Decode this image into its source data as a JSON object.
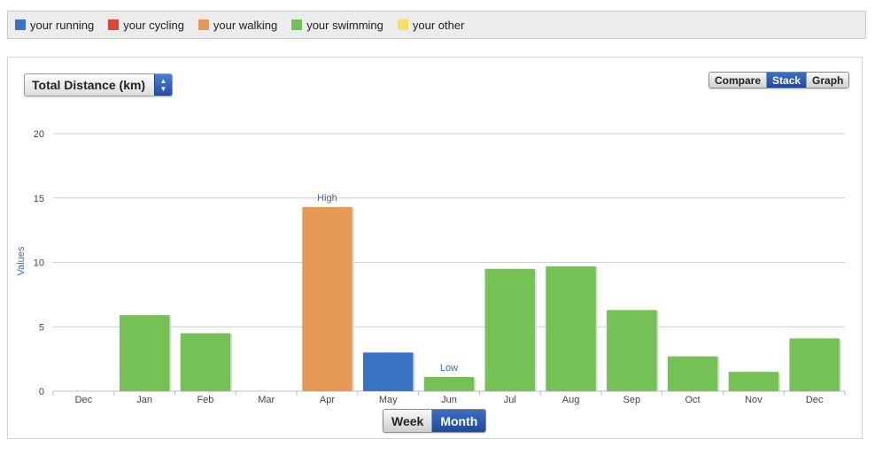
{
  "legend": [
    {
      "label": "your running",
      "color": "#3a72c4"
    },
    {
      "label": "your cycling",
      "color": "#d9463f"
    },
    {
      "label": "your walking",
      "color": "#e59a55"
    },
    {
      "label": "your swimming",
      "color": "#76c155"
    },
    {
      "label": "your other",
      "color": "#f7de5f"
    }
  ],
  "metric_select": {
    "label": "Total Distance (km)"
  },
  "view_toggle": {
    "compare": "Compare",
    "stack": "Stack",
    "graph": "Graph",
    "active": "stack"
  },
  "period_toggle": {
    "week": "Week",
    "month": "Month",
    "active": "month"
  },
  "chart_data": {
    "type": "bar",
    "stacked": true,
    "categories": [
      "Dec",
      "Jan",
      "Feb",
      "Mar",
      "Apr",
      "May",
      "Jun",
      "Jul",
      "Aug",
      "Sep",
      "Oct",
      "Nov",
      "Dec"
    ],
    "series": [
      {
        "name": "your running",
        "color": "#3a72c4",
        "values": [
          0,
          0,
          0,
          0,
          0,
          3.0,
          0,
          0,
          0,
          0,
          0,
          0,
          0
        ]
      },
      {
        "name": "your cycling",
        "color": "#d9463f",
        "values": [
          0,
          0,
          0,
          0,
          0,
          0,
          0,
          0,
          0,
          0,
          0,
          0,
          0
        ]
      },
      {
        "name": "your walking",
        "color": "#e59a55",
        "values": [
          0,
          0,
          0,
          0,
          14.3,
          0,
          0,
          0,
          0,
          0,
          0,
          0,
          0
        ]
      },
      {
        "name": "your swimming",
        "color": "#76c155",
        "values": [
          0,
          5.9,
          4.5,
          0,
          0,
          0,
          1.1,
          9.5,
          9.7,
          6.3,
          2.7,
          1.5,
          4.1
        ]
      },
      {
        "name": "your other",
        "color": "#f7de5f",
        "values": [
          0,
          0,
          0,
          0,
          0,
          0,
          0,
          0,
          0,
          0,
          0,
          0,
          0
        ]
      }
    ],
    "ylim": [
      0,
      20
    ],
    "yticks": [
      0,
      5,
      10,
      15,
      20
    ],
    "ylabel": "Values",
    "grid": true,
    "annotations": [
      {
        "label": "High",
        "category_index": 4
      },
      {
        "label": "Low",
        "category_index": 6
      }
    ]
  }
}
